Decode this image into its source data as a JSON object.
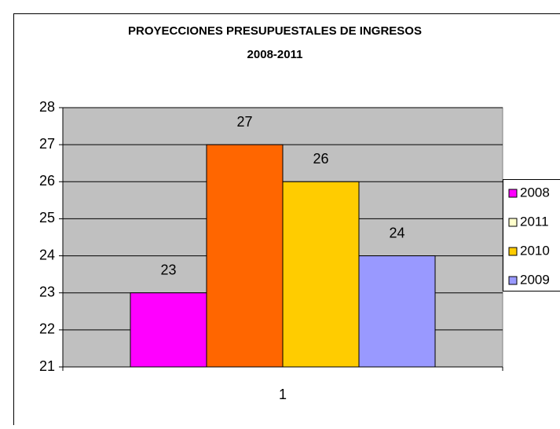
{
  "chart_data": {
    "type": "bar",
    "title": "PROYECCIONES PRESUPUESTALES DE INGRESOS",
    "subtitle": "2008-2011",
    "categories": [
      "1"
    ],
    "series": [
      {
        "name": "2008",
        "color": "#ff00ff",
        "legend_color": "#ff00ff",
        "values": [
          23
        ]
      },
      {
        "name": "2011",
        "color": "#ff6600",
        "legend_color": "#ffffcc",
        "values": [
          27
        ]
      },
      {
        "name": "2010",
        "color": "#ffcc00",
        "legend_color": "#ffcc00",
        "values": [
          26
        ]
      },
      {
        "name": "2009",
        "color": "#9999ff",
        "legend_color": "#9999ff",
        "values": [
          24
        ]
      }
    ],
    "ylim": [
      21,
      28
    ],
    "yticks": [
      21,
      22,
      23,
      24,
      25,
      26,
      27,
      28
    ],
    "grid": true,
    "legend": "right",
    "plot_background": "#c0c0c0"
  }
}
